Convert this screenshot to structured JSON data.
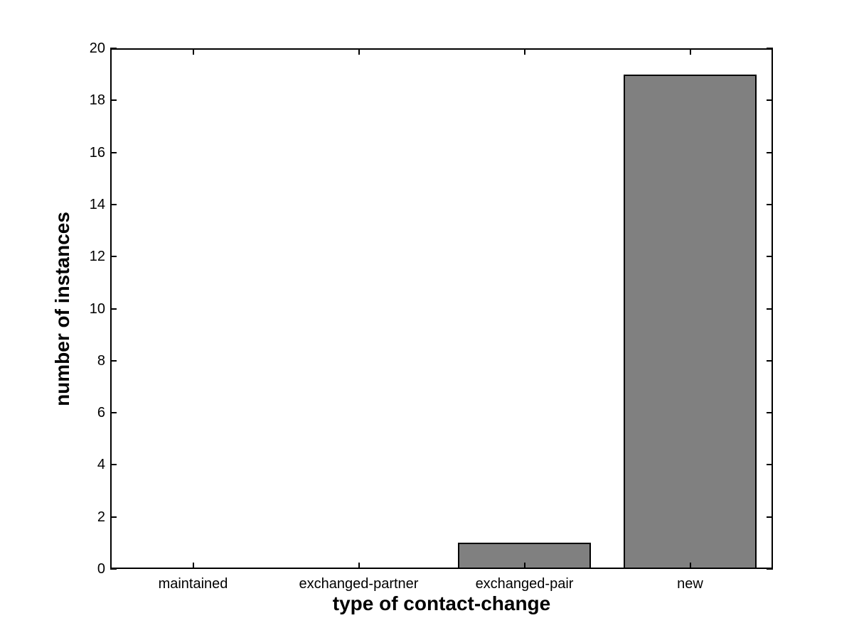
{
  "chart_data": {
    "type": "bar",
    "categories": [
      "maintained",
      "exchanged-partner",
      "exchanged-pair",
      "new"
    ],
    "values": [
      0,
      0,
      1,
      19
    ],
    "title": "",
    "xlabel": "type of contact-change",
    "ylabel": "number of instances",
    "ylim": [
      0,
      20
    ],
    "yticks": [
      0,
      2,
      4,
      6,
      8,
      10,
      12,
      14,
      16,
      18,
      20
    ],
    "bar_width_fraction": 0.8,
    "grid": false,
    "legend_position": "none",
    "colors": {
      "bar_fill": "#808080",
      "bar_edge": "#000000",
      "axis": "#000000",
      "background": "#ffffff",
      "text": "#000000"
    }
  }
}
